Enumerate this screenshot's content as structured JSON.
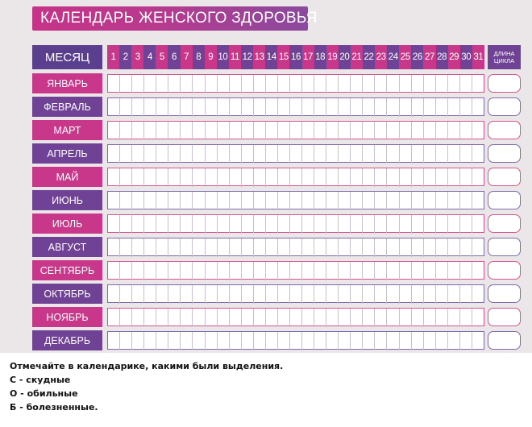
{
  "title": "КАЛЕНДАРЬ ЖЕНСКОГО ЗДОРОВЬЯ",
  "month_header": "МЕСЯЦ",
  "cycle_header": [
    "ДЛИНА",
    "ЦИКЛА"
  ],
  "days": [
    "1",
    "2",
    "3",
    "4",
    "5",
    "6",
    "7",
    "8",
    "9",
    "10",
    "11",
    "12",
    "13",
    "14",
    "15",
    "16",
    "17",
    "18",
    "19",
    "20",
    "21",
    "22",
    "23",
    "24",
    "25",
    "26",
    "27",
    "28",
    "29",
    "30",
    "31"
  ],
  "months": [
    "ЯНВАРЬ",
    "ФЕВРАЛЬ",
    "МАРТ",
    "АПРЕЛЬ",
    "МАЙ",
    "ИЮНЬ",
    "ИЮЛЬ",
    "АВГУСТ",
    "СЕНТЯБРЬ",
    "ОКТЯБРЬ",
    "НОЯБРЬ",
    "ДЕКАБРЬ"
  ],
  "legend": {
    "intro": "Отмечайте в календарике, какими были выделения.",
    "items": [
      "С - скудные",
      "О - обильные",
      "Б - болезненные."
    ]
  },
  "colors": {
    "pink": "#c8378a",
    "purple": "#6f4296",
    "header_purple": "#5a3f8f"
  }
}
